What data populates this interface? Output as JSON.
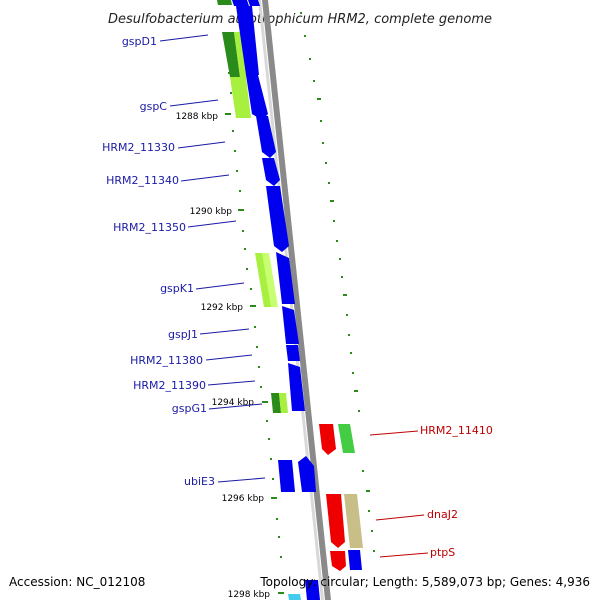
{
  "title": "Desulfobacterium autotrophicum HRM2, complete genome",
  "footer": {
    "accession": "Accession: NC_012108",
    "topology": "Topology: circular; Length: 5,589,073 bp; Genes: 4,936"
  },
  "colors": {
    "blue": "#0000ee",
    "darkgreen": "#2a8a1a",
    "lightgreen": "#a8f040",
    "green": "#44cc44",
    "red": "#ee0000",
    "khaki": "#c8be88",
    "cyan": "#44ccee",
    "backbone": "#888888",
    "leftLabel": "#1a1aa6",
    "rightLabel": "#c00000"
  },
  "ticks": [
    {
      "label": "1288 kbp"
    },
    {
      "label": "1290 kbp"
    },
    {
      "label": "1292 kbp"
    },
    {
      "label": "1294 kbp"
    },
    {
      "label": "1296 kbp"
    },
    {
      "label": "1298 kbp"
    }
  ],
  "genes_left": [
    {
      "label": "gspD1"
    },
    {
      "label": "gspC"
    },
    {
      "label": "HRM2_11330"
    },
    {
      "label": "HRM2_11340"
    },
    {
      "label": "HRM2_11350"
    },
    {
      "label": "gspK1"
    },
    {
      "label": "gspJ1"
    },
    {
      "label": "HRM2_11380"
    },
    {
      "label": "HRM2_11390"
    },
    {
      "label": "gspG1"
    },
    {
      "label": "ubiE3"
    }
  ],
  "genes_right": [
    {
      "label": "HRM2_11410"
    },
    {
      "label": "dnaJ2"
    },
    {
      "label": "ptpS"
    }
  ]
}
